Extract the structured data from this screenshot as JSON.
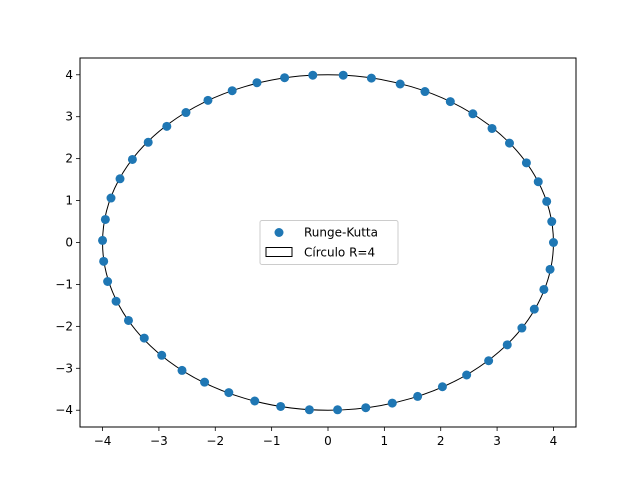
{
  "chart_data": {
    "type": "scatter",
    "title": "",
    "xlabel": "",
    "ylabel": "",
    "xlim": [
      -4.4,
      4.4
    ],
    "ylim": [
      -4.4,
      4.4
    ],
    "x_ticks": [
      -4,
      -3,
      -2,
      -1,
      0,
      1,
      2,
      3,
      4
    ],
    "x_tick_labels": [
      "−4",
      "−3",
      "−2",
      "−1",
      "0",
      "1",
      "2",
      "3",
      "4"
    ],
    "y_ticks": [
      -4,
      -3,
      -2,
      -1,
      0,
      1,
      2,
      3,
      4
    ],
    "y_tick_labels": [
      "−4",
      "−3",
      "−2",
      "−1",
      "0",
      "1",
      "2",
      "3",
      "4"
    ],
    "grid": false,
    "legend": {
      "placement": "center",
      "entries": [
        "Runge-Kutta",
        "Círculo R=4"
      ]
    },
    "series": [
      {
        "name": "Runge-Kutta",
        "kind": "scatter",
        "color": "#1f77b4",
        "points": [
          [
            4.0,
            0.0
          ],
          [
            3.97,
            0.5
          ],
          [
            3.88,
            0.98
          ],
          [
            3.73,
            1.45
          ],
          [
            3.52,
            1.9
          ],
          [
            3.22,
            2.37
          ],
          [
            2.91,
            2.72
          ],
          [
            2.57,
            3.07
          ],
          [
            2.17,
            3.36
          ],
          [
            1.72,
            3.6
          ],
          [
            1.28,
            3.78
          ],
          [
            0.77,
            3.92
          ],
          [
            0.27,
            3.99
          ],
          [
            -0.27,
            3.99
          ],
          [
            -0.77,
            3.93
          ],
          [
            -1.26,
            3.81
          ],
          [
            -1.7,
            3.62
          ],
          [
            -2.13,
            3.39
          ],
          [
            -2.52,
            3.1
          ],
          [
            -2.86,
            2.77
          ],
          [
            -3.19,
            2.39
          ],
          [
            -3.47,
            1.98
          ],
          [
            -3.69,
            1.52
          ],
          [
            -3.85,
            1.06
          ],
          [
            -3.95,
            0.55
          ],
          [
            -4.0,
            0.05
          ],
          [
            -3.98,
            -0.45
          ],
          [
            -3.91,
            -0.93
          ],
          [
            -3.76,
            -1.4
          ],
          [
            -3.54,
            -1.86
          ],
          [
            -3.26,
            -2.28
          ],
          [
            -2.95,
            -2.69
          ],
          [
            -2.59,
            -3.05
          ],
          [
            -2.19,
            -3.33
          ],
          [
            -1.76,
            -3.58
          ],
          [
            -1.3,
            -3.78
          ],
          [
            -0.84,
            -3.91
          ],
          [
            -0.33,
            -3.99
          ],
          [
            0.17,
            -3.99
          ],
          [
            0.67,
            -3.94
          ],
          [
            1.14,
            -3.83
          ],
          [
            1.59,
            -3.67
          ],
          [
            2.03,
            -3.44
          ],
          [
            2.46,
            -3.16
          ],
          [
            2.85,
            -2.82
          ],
          [
            3.18,
            -2.44
          ],
          [
            3.44,
            -2.04
          ],
          [
            3.66,
            -1.59
          ],
          [
            3.83,
            -1.12
          ],
          [
            3.94,
            -0.64
          ]
        ]
      },
      {
        "name": "Círculo R=4",
        "kind": "circle",
        "center": [
          0,
          0
        ],
        "radius": 4,
        "edgecolor": "#000000",
        "facecolor": "none"
      }
    ]
  }
}
